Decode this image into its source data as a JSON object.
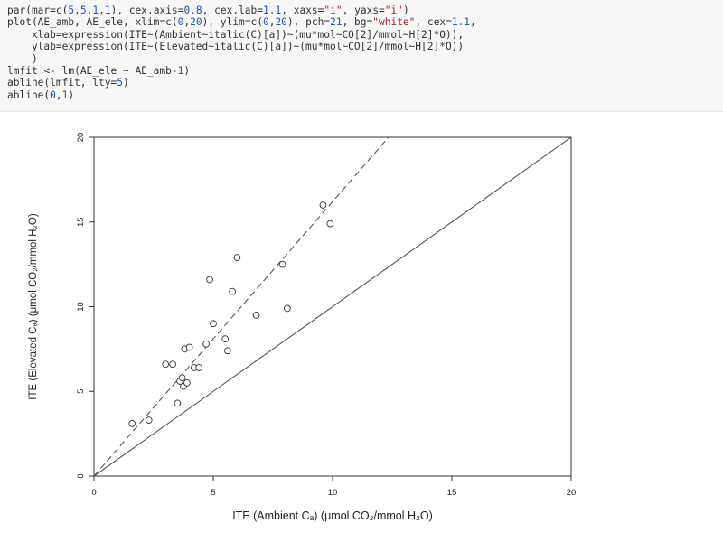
{
  "code": {
    "lines": [
      "par(mar=c(5,5,1,1), cex.axis=0.8, cex.lab=1.1, xaxs=\"i\", yaxs=\"i\")",
      "plot(AE_amb, AE_ele, xlim=c(0,20), ylim=c(0,20), pch=21, bg=\"white\", cex=1.1,",
      "    xlab=expression(ITE~(Ambient~italic(C)[a])~(mu*mol~CO[2]/mmol~H[2]*O)),",
      "    ylab=expression(ITE~(Elevated~italic(C)[a])~(mu*mol~CO[2]/mmol~H[2]*O))",
      "    )",
      "lmfit <- lm(AE_ele ~ AE_amb-1)",
      "abline(lmfit, lty=5)",
      "abline(0,1)"
    ]
  },
  "chart_data": {
    "type": "scatter",
    "xlabel": "ITE (Ambient Cₐ) (μmol CO₂/mmol H₂O)",
    "ylabel": "ITE (Elevated Cₐ) (μmol CO₂/mmol H₂O)",
    "xlim": [
      0,
      20
    ],
    "ylim": [
      0,
      20
    ],
    "xticks": [
      "0",
      "5",
      "10",
      "15",
      "20"
    ],
    "yticks": [
      "0",
      "5",
      "10",
      "15",
      "20"
    ],
    "grid": false,
    "legend": "none",
    "points": {
      "x": [
        1.6,
        2.3,
        3.0,
        3.3,
        3.5,
        3.6,
        3.7,
        3.75,
        3.8,
        3.9,
        4.0,
        4.2,
        4.4,
        4.7,
        4.85,
        5.0,
        5.5,
        5.6,
        5.8,
        6.0,
        6.8,
        7.9,
        8.1,
        9.6,
        9.9
      ],
      "y": [
        3.1,
        3.3,
        6.6,
        6.6,
        4.3,
        5.6,
        5.8,
        5.3,
        7.5,
        5.5,
        7.6,
        6.4,
        6.4,
        7.8,
        11.6,
        9.0,
        8.1,
        7.4,
        10.9,
        12.9,
        9.5,
        12.5,
        9.9,
        16.0,
        14.9
      ]
    },
    "lines": [
      {
        "kind": "fit-through-origin",
        "style": "dashed",
        "slope": 1.62
      },
      {
        "kind": "identity",
        "style": "solid",
        "slope": 1.0
      }
    ]
  }
}
